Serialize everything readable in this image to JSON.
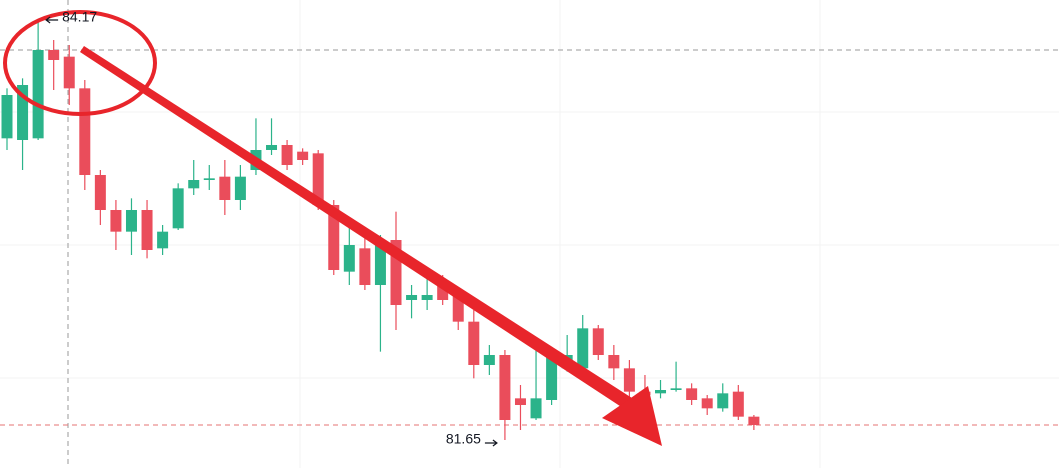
{
  "chart_data": {
    "type": "candlestick",
    "open": [
      83.46,
      83.45,
      83.46,
      83.99,
      83.95,
      83.76,
      83.24,
      83.03,
      82.9,
      83.03,
      82.8,
      82.92,
      83.16,
      83.21,
      83.23,
      83.09,
      83.27,
      83.39,
      83.42,
      83.38,
      83.37,
      83.06,
      82.66,
      82.8,
      82.58,
      82.85,
      82.49,
      82.49,
      82.59,
      82.52,
      82.36,
      82.1,
      82.16,
      81.9,
      81.78,
      81.89,
      82.08,
      82.08,
      82.32,
      82.16,
      82.08,
      81.94,
      81.93,
      81.95,
      81.96,
      81.9,
      81.84,
      81.94,
      81.79
    ],
    "high": [
      83.76,
      83.82,
      84.17,
      84.05,
      84.02,
      83.81,
      83.27,
      83.09,
      83.1,
      83.09,
      82.94,
      83.19,
      83.33,
      83.3,
      83.33,
      83.3,
      83.58,
      83.58,
      83.45,
      83.4,
      83.39,
      83.09,
      82.98,
      82.86,
      82.88,
      83.02,
      82.58,
      82.67,
      82.64,
      82.55,
      82.43,
      82.22,
      82.19,
      81.98,
      82.22,
      82.2,
      82.28,
      82.4,
      82.34,
      82.22,
      82.13,
      82.04,
      82.01,
      82.12,
      81.99,
      81.92,
      81.99,
      81.98,
      81.8
    ],
    "low": [
      83.39,
      83.27,
      83.45,
      83.75,
      83.66,
      83.15,
      82.94,
      82.79,
      82.76,
      82.74,
      82.76,
      82.91,
      83.12,
      83.15,
      83.0,
      83.03,
      83.24,
      83.36,
      83.27,
      83.3,
      83.03,
      82.64,
      82.58,
      82.55,
      82.18,
      82.31,
      82.38,
      82.43,
      82.46,
      82.31,
      82.02,
      82.04,
      81.65,
      81.71,
      81.77,
      81.86,
      82.06,
      82.06,
      82.13,
      82.01,
      81.89,
      81.89,
      81.9,
      81.94,
      81.86,
      81.8,
      81.82,
      81.77,
      81.71
    ],
    "close": [
      83.72,
      83.78,
      83.99,
      83.93,
      83.76,
      83.24,
      83.03,
      82.9,
      83.03,
      82.79,
      82.9,
      83.16,
      83.21,
      83.22,
      83.09,
      83.23,
      83.39,
      83.42,
      83.3,
      83.33,
      83.06,
      82.67,
      82.82,
      82.58,
      82.85,
      82.46,
      82.52,
      82.52,
      82.49,
      82.36,
      82.1,
      82.16,
      81.77,
      81.86,
      81.9,
      82.16,
      82.16,
      82.32,
      82.16,
      82.08,
      81.94,
      81.92,
      81.95,
      81.96,
      81.89,
      81.84,
      81.93,
      81.79,
      81.74
    ],
    "up_color": "#2bb38a",
    "down_color": "#ea4d5b",
    "ylim": [
      81.482,
      84.29
    ],
    "annotations": {
      "high": 84.17,
      "low": 81.65
    }
  }
}
